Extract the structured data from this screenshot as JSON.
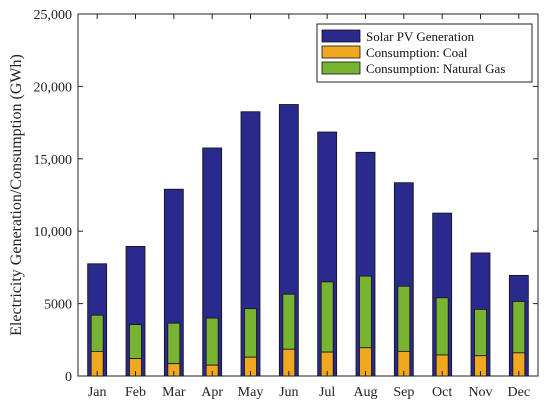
{
  "chart_data": {
    "type": "bar",
    "title": "",
    "xlabel": "",
    "ylabel": "Electricity Generation/Consumption (GWh)",
    "ylim": [
      0,
      25000
    ],
    "yticks": [
      0,
      5000,
      10000,
      15000,
      20000,
      25000
    ],
    "ytick_labels": [
      "0",
      "5000",
      "10,000",
      "15,000",
      "20,000",
      "25,000"
    ],
    "grid": false,
    "legend_position": "top-right",
    "categories": [
      "Jan",
      "Feb",
      "Mar",
      "Apr",
      "May",
      "Jun",
      "Jul",
      "Aug",
      "Sep",
      "Oct",
      "Nov",
      "Dec"
    ],
    "series": [
      {
        "name": "Solar PV Generation",
        "color": "#2a2a8c",
        "values": [
          7750,
          8950,
          12900,
          15750,
          18250,
          18750,
          16850,
          15450,
          13350,
          11250,
          8500,
          6950
        ]
      },
      {
        "name": "Consumption: Coal",
        "color": "#f0a81e",
        "values": [
          1700,
          1200,
          850,
          750,
          1300,
          1850,
          1650,
          1950,
          1700,
          1450,
          1400,
          1600
        ]
      },
      {
        "name": "Consumption: Natural Gas",
        "color": "#78b432",
        "values": [
          2500,
          2350,
          2800,
          3250,
          3350,
          3800,
          4850,
          4950,
          4500,
          3950,
          3200,
          3550
        ]
      }
    ]
  }
}
